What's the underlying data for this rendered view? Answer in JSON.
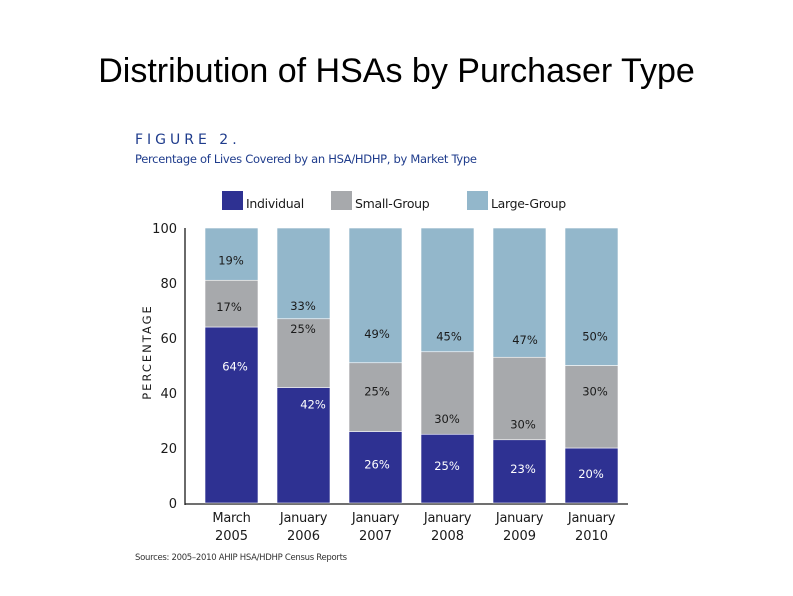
{
  "slide_title": "Distribution of HSAs by Purchaser Type",
  "figure_label": "FIGURE 2.",
  "figure_subtitle": "Percentage of Lives Covered by an HSA/HDHP, by Market Type",
  "source_note": "Sources: 2005–2010 AHIP HSA/HDHP Census Reports",
  "colors": {
    "individual": "#2e3192",
    "small_group": "#a7a9ac",
    "large_group": "#93b7cb",
    "text_dark": "#1a1a1a",
    "text_light": "#ffffff"
  },
  "chart_data": {
    "type": "bar",
    "stacked": true,
    "title": "Percentage of Lives Covered by an HSA/HDHP, by Market Type",
    "ylabel": "PERCENTAGE",
    "xlabel": "",
    "ylim": [
      0,
      100
    ],
    "yticks": [
      "0",
      "20",
      "40",
      "60",
      "80",
      "100"
    ],
    "categories": [
      [
        "March",
        "2005"
      ],
      [
        "January",
        "2006"
      ],
      [
        "January",
        "2007"
      ],
      [
        "January",
        "2008"
      ],
      [
        "January",
        "2009"
      ],
      [
        "January",
        "2010"
      ]
    ],
    "legend_position": "top",
    "series": [
      {
        "name": "Individual",
        "color": "#2e3192",
        "values": [
          64,
          42,
          26,
          25,
          23,
          20
        ],
        "labels": [
          "64%",
          "42%",
          "26%",
          "25%",
          "23%",
          "20%"
        ]
      },
      {
        "name": "Small-Group",
        "color": "#a7a9ac",
        "values": [
          17,
          25,
          25,
          30,
          30,
          30
        ],
        "labels": [
          "17%",
          "25%",
          "25%",
          "30%",
          "30%",
          "30%"
        ]
      },
      {
        "name": "Large-Group",
        "color": "#93b7cb",
        "values": [
          19,
          33,
          49,
          45,
          47,
          50
        ],
        "labels": [
          "19%",
          "33%",
          "49%",
          "45%",
          "47%",
          "50%"
        ]
      }
    ]
  }
}
